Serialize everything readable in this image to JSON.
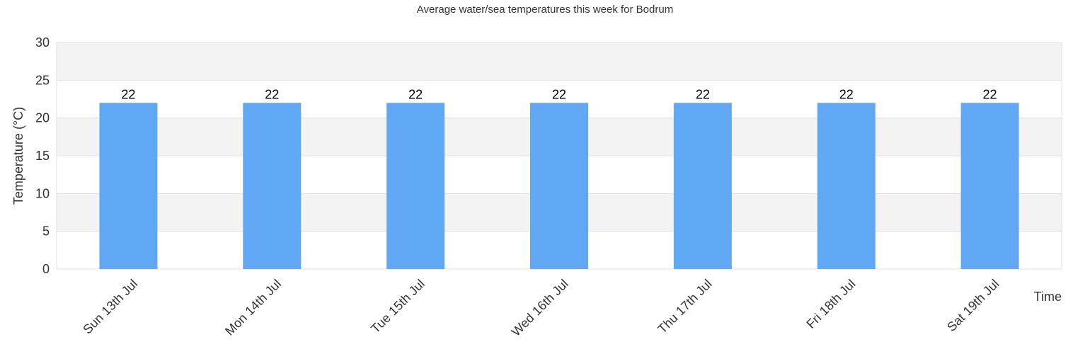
{
  "chart_data": {
    "type": "bar",
    "title": "Average water/sea temperatures this week for Bodrum",
    "xlabel": "Time",
    "ylabel": "Temperature (°C)",
    "categories": [
      "Sun 13th Jul",
      "Mon 14th Jul",
      "Tue 15th Jul",
      "Wed 16th Jul",
      "Thu 17th Jul",
      "Fri 18th Jul",
      "Sat 19th Jul"
    ],
    "values": [
      22,
      22,
      22,
      22,
      22,
      22,
      22
    ],
    "ylim": [
      0,
      30
    ],
    "yticks": [
      0,
      5,
      10,
      15,
      20,
      25,
      30
    ],
    "grid": true,
    "legend": "none",
    "colors": {
      "bar": "#60a8f4",
      "band": "#f3f3f3",
      "grid": "#e0e0e0",
      "text": "#333333"
    }
  }
}
